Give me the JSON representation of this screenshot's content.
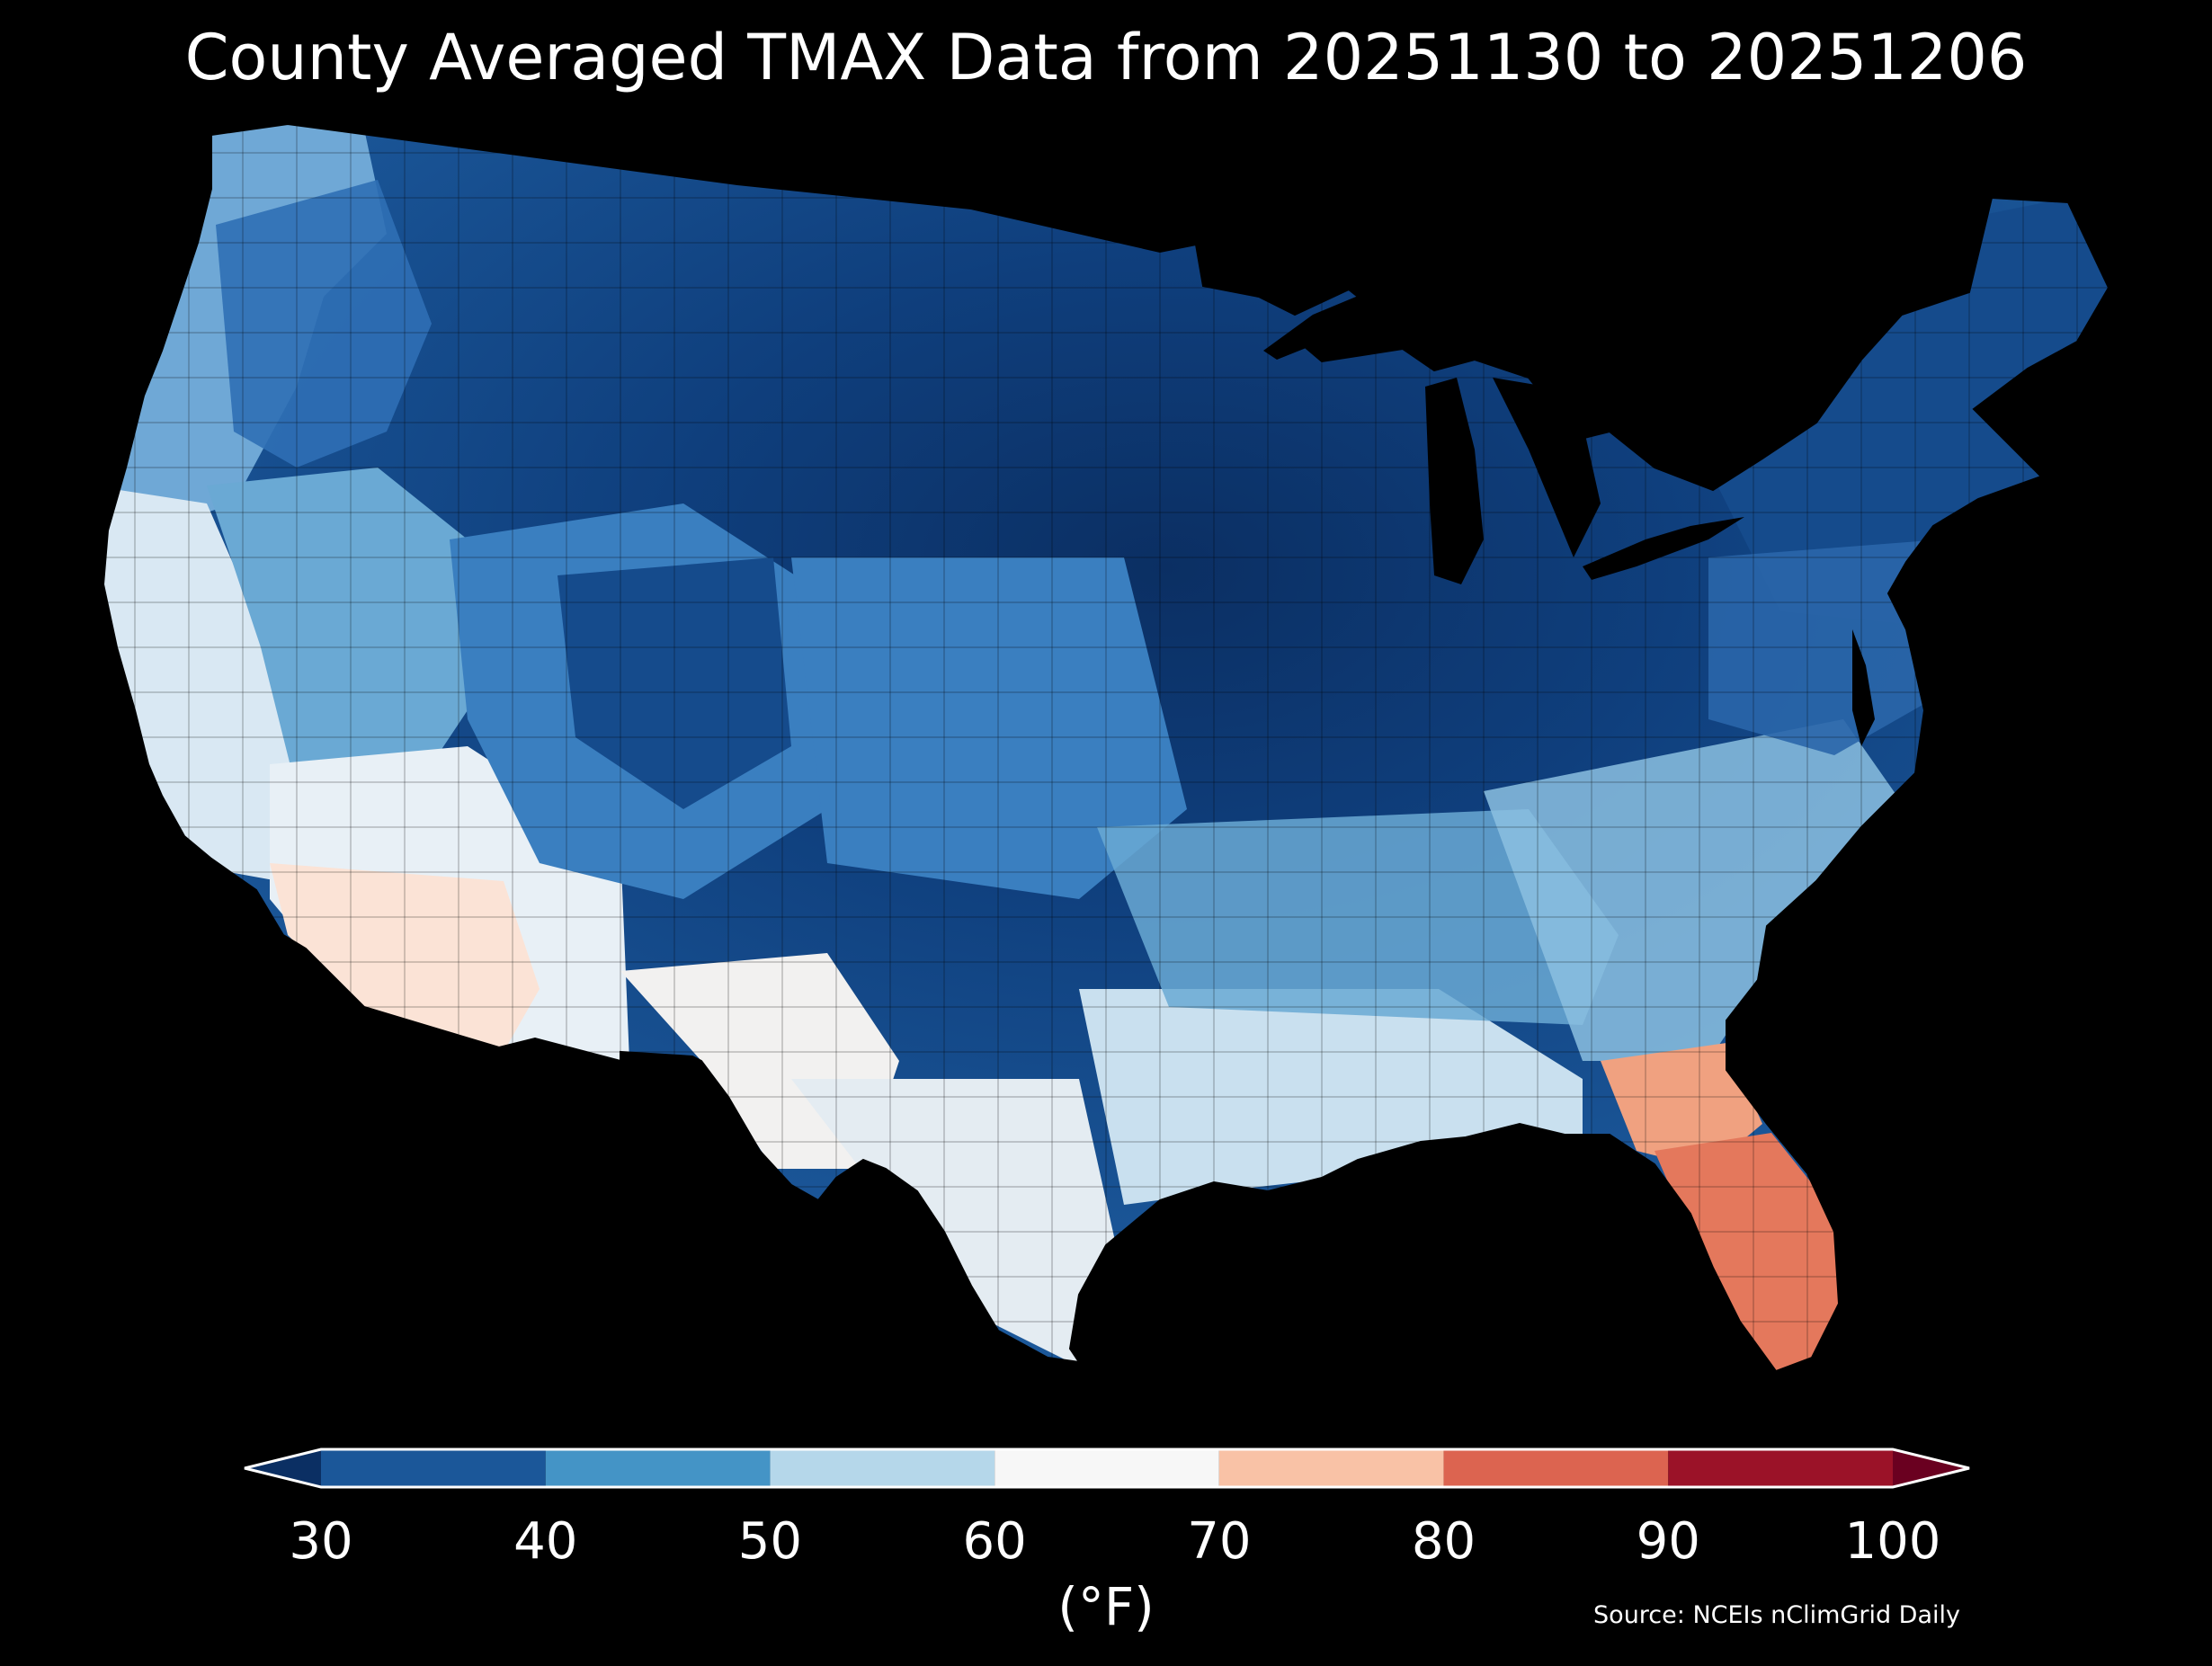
{
  "title": "County Averaged TMAX Data from 20251130 to 20251206",
  "colorbar": {
    "unit_label": "(°F)",
    "ticks": [
      "30",
      "40",
      "50",
      "60",
      "70",
      "80",
      "90",
      "100"
    ],
    "bins": [
      {
        "from": 30,
        "to": 40,
        "color": "#1b5799"
      },
      {
        "from": 40,
        "to": 50,
        "color": "#4494c6"
      },
      {
        "from": 50,
        "to": 60,
        "color": "#b5d7ea"
      },
      {
        "from": 60,
        "to": 70,
        "color": "#f7f7f7"
      },
      {
        "from": 70,
        "to": 80,
        "color": "#f9c2a6"
      },
      {
        "from": 80,
        "to": 90,
        "color": "#dc6450"
      },
      {
        "from": 90,
        "to": 100,
        "color": "#9b1228"
      }
    ],
    "extend_low_color": "#0b2f63",
    "extend_high_color": "#6a0020"
  },
  "source": "Source: NCEIs nClimGrid Daily",
  "map": {
    "region": "Contiguous United States",
    "variable": "TMAX",
    "background_color": "#000000",
    "temperature_zones": [
      {
        "name": "northern-plains-coldest",
        "color": "#0b2f63"
      },
      {
        "name": "upper-midwest-cold",
        "color": "#0d3a72"
      },
      {
        "name": "great-lakes-northeast",
        "color": "#154b8c"
      },
      {
        "name": "mountain-west",
        "color": "#2f6fb5"
      },
      {
        "name": "central-plains",
        "color": "#3a7fc0"
      },
      {
        "name": "mid-south",
        "color": "#6aa9d4"
      },
      {
        "name": "pacific-northwest",
        "color": "#6fa8d6"
      },
      {
        "name": "gulf-and-southeast",
        "color": "#c9e0ef"
      },
      {
        "name": "california-coast",
        "color": "#d9e8f3"
      },
      {
        "name": "desert-southwest",
        "color": "#fbe3d6"
      },
      {
        "name": "south-texas",
        "color": "#f7efe9"
      },
      {
        "name": "north-florida",
        "color": "#f0a180"
      },
      {
        "name": "south-florida",
        "color": "#e4785c"
      }
    ]
  }
}
